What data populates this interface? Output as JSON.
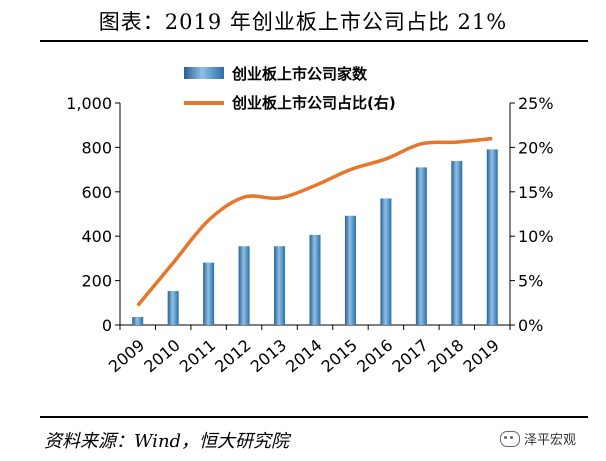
{
  "title": "图表：2019 年创业板上市公司占比 21%",
  "source": "资料来源：Wind，恒大研究院",
  "watermark": "泽平宏观",
  "colors": {
    "bar": "#4a8cc3",
    "bar_dark": "#2a5f8f",
    "line": "#e8752a"
  },
  "chart_data": {
    "type": "bar",
    "categories": [
      "2009",
      "2010",
      "2011",
      "2012",
      "2013",
      "2014",
      "2015",
      "2016",
      "2017",
      "2018",
      "2019"
    ],
    "series": [
      {
        "name": "创业板上市公司家数",
        "type": "bar",
        "axis": "left",
        "values": [
          36,
          153,
          281,
          355,
          355,
          406,
          492,
          570,
          710,
          739,
          791
        ]
      },
      {
        "name": "创业板上市公司占比(右)",
        "type": "line",
        "axis": "right",
        "values": [
          2.2,
          7.0,
          11.8,
          14.4,
          14.3,
          15.7,
          17.5,
          18.7,
          20.4,
          20.6,
          21.0
        ]
      }
    ],
    "y_left": {
      "lim": [
        0,
        1000
      ],
      "ticks": [
        0,
        200,
        400,
        600,
        800,
        1000
      ],
      "tick_labels": [
        "0",
        "200",
        "400",
        "600",
        "800",
        "1,000"
      ]
    },
    "y_right": {
      "lim": [
        0,
        25
      ],
      "ticks": [
        0,
        5,
        10,
        15,
        20,
        25
      ],
      "tick_labels": [
        "0%",
        "5%",
        "10%",
        "15%",
        "20%",
        "25%"
      ]
    },
    "legend": "top-center",
    "grid": false
  }
}
